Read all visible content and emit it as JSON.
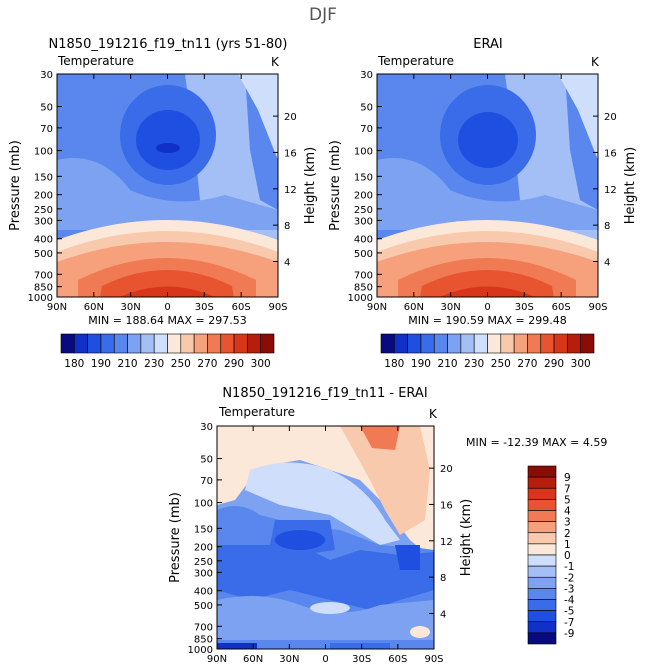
{
  "page_title": "DJF",
  "chart_data": [
    {
      "type": "heatmap",
      "title": "N1850_191216_f19_tn11 (yrs 51-80)",
      "subtitle": "Temperature",
      "units": "K",
      "ylabel": "Pressure (mb)",
      "ylabel_right": "Height (km)",
      "pressure_ticks": [
        "30",
        "50",
        "70",
        "100",
        "150",
        "200",
        "250",
        "300",
        "400",
        "500",
        "700",
        "850",
        "1000"
      ],
      "height_ticks": [
        "20",
        "16",
        "12",
        "8",
        "4"
      ],
      "lat_ticks": [
        "90N",
        "60N",
        "30N",
        "0",
        "30S",
        "60S",
        "90S"
      ],
      "stats": {
        "min_label": "MIN =",
        "min": "188.64",
        "max_label": "MAX =",
        "max": "297.53"
      }
    },
    {
      "type": "heatmap",
      "title": "ERAI",
      "subtitle": "Temperature",
      "units": "K",
      "ylabel": "Pressure (mb)",
      "ylabel_right": "Height (km)",
      "pressure_ticks": [
        "30",
        "50",
        "70",
        "100",
        "150",
        "200",
        "250",
        "300",
        "400",
        "500",
        "700",
        "850",
        "1000"
      ],
      "height_ticks": [
        "20",
        "16",
        "12",
        "8",
        "4"
      ],
      "lat_ticks": [
        "90N",
        "60N",
        "30N",
        "0",
        "30S",
        "60S",
        "90S"
      ],
      "stats": {
        "min_label": "MIN =",
        "min": "190.59",
        "max_label": "MAX =",
        "max": "299.48"
      }
    },
    {
      "type": "heatmap",
      "title": "N1850_191216_f19_tn11 - ERAI",
      "subtitle": "Temperature",
      "units": "K",
      "ylabel": "Pressure (mb)",
      "ylabel_right": "Height (km)",
      "pressure_ticks": [
        "30",
        "50",
        "70",
        "100",
        "150",
        "200",
        "250",
        "300",
        "400",
        "500",
        "700",
        "850",
        "1000"
      ],
      "height_ticks": [
        "20",
        "16",
        "12",
        "8",
        "4"
      ],
      "lat_ticks": [
        "90N",
        "60N",
        "30N",
        "0",
        "30S",
        "60S",
        "90S"
      ],
      "stats": {
        "min_label": "MIN =",
        "min": "-12.39",
        "max_label": "MAX =",
        "max": "4.59"
      }
    }
  ],
  "colorbar_abs": {
    "labels": [
      "180",
      "190",
      "210",
      "230",
      "250",
      "270",
      "290",
      "300"
    ],
    "colors": [
      "#0a0a80",
      "#1030c8",
      "#1f4fe0",
      "#3a6be8",
      "#5a87ee",
      "#7da2f2",
      "#a3bff6",
      "#cfdefa",
      "#fbe8d8",
      "#f9c9ad",
      "#f6a07c",
      "#f07a53",
      "#e8542f",
      "#d8361a",
      "#b51d0c",
      "#8b0c04"
    ]
  },
  "colorbar_diff": {
    "labels": [
      "9",
      "7",
      "5",
      "4",
      "3",
      "2",
      "1",
      "0",
      "-1",
      "-2",
      "-3",
      "-4",
      "-5",
      "-7",
      "-9"
    ],
    "colors": [
      "#8b0c04",
      "#b51d0c",
      "#d8361a",
      "#e8542f",
      "#f07a53",
      "#f6a07c",
      "#f9c9ad",
      "#fbe8d8",
      "#cfdefa",
      "#a3bff6",
      "#7da2f2",
      "#5a87ee",
      "#3a6be8",
      "#1f4fe0",
      "#1030c8",
      "#0a0a80"
    ]
  }
}
